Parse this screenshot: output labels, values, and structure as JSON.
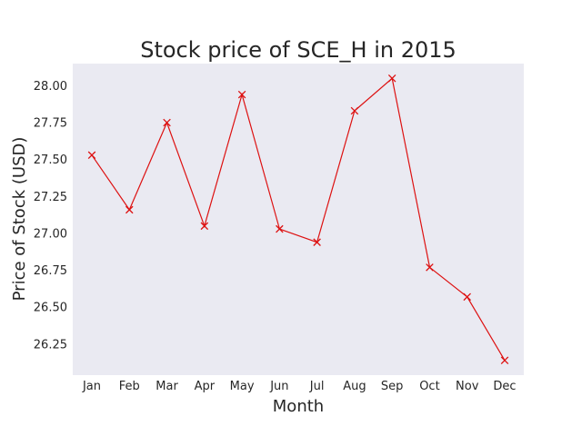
{
  "chart_data": {
    "type": "line",
    "title": "Stock price of SCE_H in 2015",
    "xlabel": "Month",
    "ylabel": "Price of Stock (USD)",
    "categories": [
      "Jan",
      "Feb",
      "Mar",
      "Apr",
      "May",
      "Jun",
      "Jul",
      "Aug",
      "Sep",
      "Oct",
      "Nov",
      "Dec"
    ],
    "values": [
      27.53,
      27.16,
      27.75,
      27.05,
      27.94,
      27.03,
      26.94,
      27.83,
      28.05,
      26.77,
      26.57,
      26.14
    ],
    "yticks": [
      "26.25",
      "26.50",
      "26.75",
      "27.00",
      "27.25",
      "27.50",
      "27.75",
      "28.00"
    ],
    "ylim": [
      26.04,
      28.15
    ],
    "marker": "x",
    "grid": false,
    "colors": {
      "line": "#dd1111",
      "plot_background": "#eaeaf2",
      "text": "#262626"
    }
  }
}
